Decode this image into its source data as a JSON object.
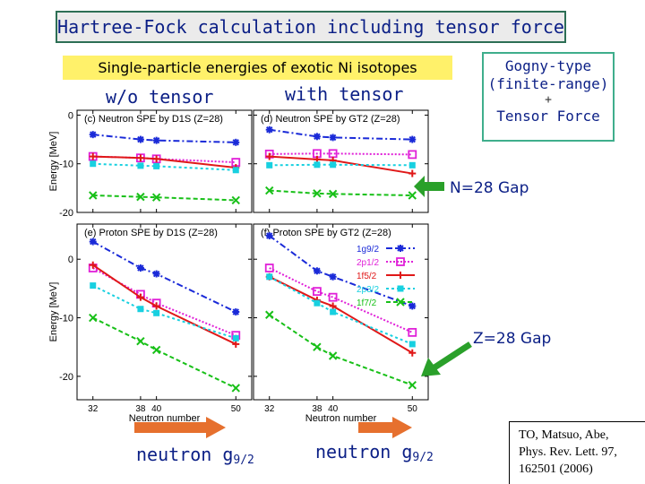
{
  "title": "Hartree-Fock calculation including tensor force",
  "subtitle": "Single-particle energies of exotic Ni isotopes",
  "col_labels": {
    "without": "w/o tensor",
    "with": "with tensor"
  },
  "gogny": {
    "line1": "Gogny-type",
    "line2": "(finite-range)",
    "plus": "+",
    "line3": "Tensor Force"
  },
  "annotations": {
    "n28": "N=28 Gap",
    "z28": "Z=28 Gap"
  },
  "neutron_g92": {
    "text": "neutron g",
    "sub": "9/2"
  },
  "reference": {
    "line1": "TO, Matsuo, Abe,",
    "line2": "Phys. Rev. Lett. 97,",
    "line3": "162501 (2006)"
  },
  "colors": {
    "1g9/2": "#1a2ad8",
    "2p1/2": "#e020d8",
    "1f5/2": "#e01818",
    "2p3/2": "#18d0e0",
    "1f7/2": "#18c018"
  },
  "chart_data": [
    {
      "type": "line",
      "id": "c",
      "title": "(c) Neutron SPE by D1S (Z=28)",
      "ylabel": "Energy [MeV]",
      "ylim": [
        -20,
        1
      ],
      "yticks": [
        "0",
        "-10",
        "-20"
      ],
      "x": [
        32,
        38,
        40,
        50
      ],
      "series": [
        {
          "name": "1g9/2",
          "values": [
            -4,
            -5,
            -5.2,
            -5.6
          ]
        },
        {
          "name": "2p1/2",
          "values": [
            -8.5,
            -8.8,
            -9,
            -9.7
          ]
        },
        {
          "name": "1f5/2",
          "values": [
            -8.5,
            -8.8,
            -9,
            -10.8
          ]
        },
        {
          "name": "2p3/2",
          "values": [
            -10,
            -10.4,
            -10.5,
            -11.3
          ]
        },
        {
          "name": "1f7/2",
          "values": [
            -16.5,
            -16.8,
            -16.9,
            -17.5
          ]
        }
      ]
    },
    {
      "type": "line",
      "id": "d",
      "title": "(d) Neutron SPE by GT2 (Z=28)",
      "ylim": [
        -20,
        1
      ],
      "x": [
        32,
        38,
        40,
        50
      ],
      "series": [
        {
          "name": "1g9/2",
          "values": [
            -3,
            -4.4,
            -4.6,
            -5
          ]
        },
        {
          "name": "2p1/2",
          "values": [
            -8,
            -7.9,
            -7.9,
            -8.1
          ]
        },
        {
          "name": "1f5/2",
          "values": [
            -8.5,
            -9.1,
            -9.3,
            -12
          ]
        },
        {
          "name": "2p3/2",
          "values": [
            -10.3,
            -10.2,
            -10.2,
            -10.3
          ]
        },
        {
          "name": "1f7/2",
          "values": [
            -15.5,
            -16.1,
            -16.2,
            -16.5
          ]
        }
      ]
    },
    {
      "type": "line",
      "id": "e",
      "title": "(e) Proton SPE by D1S (Z=28)",
      "ylabel": "Energy [MeV]",
      "ylim": [
        -24,
        6
      ],
      "yticks": [
        "0",
        "-10",
        "-20"
      ],
      "xlabel": "Neutron number",
      "xticks": [
        "32",
        "38",
        "40",
        "50"
      ],
      "x": [
        32,
        38,
        40,
        50
      ],
      "series": [
        {
          "name": "1g9/2",
          "values": [
            3,
            -1.5,
            -2.5,
            -9
          ]
        },
        {
          "name": "2p1/2",
          "values": [
            -1.5,
            -6,
            -7.5,
            -13
          ]
        },
        {
          "name": "1f5/2",
          "values": [
            -1,
            -6.5,
            -8,
            -14.5
          ]
        },
        {
          "name": "2p3/2",
          "values": [
            -4.5,
            -8.5,
            -9.2,
            -13.5
          ]
        },
        {
          "name": "1f7/2",
          "values": [
            -10,
            -14,
            -15.5,
            -22
          ]
        }
      ]
    },
    {
      "type": "line",
      "id": "f",
      "title": "(f) Proton SPE by GT2 (Z=28)",
      "ylim": [
        -24,
        6
      ],
      "xlabel": "Neutron number",
      "xticks": [
        "32",
        "38",
        "40",
        "50"
      ],
      "legend": [
        "1g9/2",
        "2p1/2",
        "1f5/2",
        "2p3/2",
        "1f7/2"
      ],
      "x": [
        32,
        38,
        40,
        50
      ],
      "series": [
        {
          "name": "1g9/2",
          "values": [
            4,
            -2,
            -3,
            -8
          ]
        },
        {
          "name": "2p1/2",
          "values": [
            -1.5,
            -5.5,
            -6.5,
            -12.5
          ]
        },
        {
          "name": "1f5/2",
          "values": [
            -3,
            -7,
            -8,
            -16
          ]
        },
        {
          "name": "2p3/2",
          "values": [
            -3,
            -7.5,
            -9,
            -14.5
          ]
        },
        {
          "name": "1f7/2",
          "values": [
            -9.5,
            -15,
            -16.5,
            -21.5
          ]
        }
      ]
    }
  ]
}
